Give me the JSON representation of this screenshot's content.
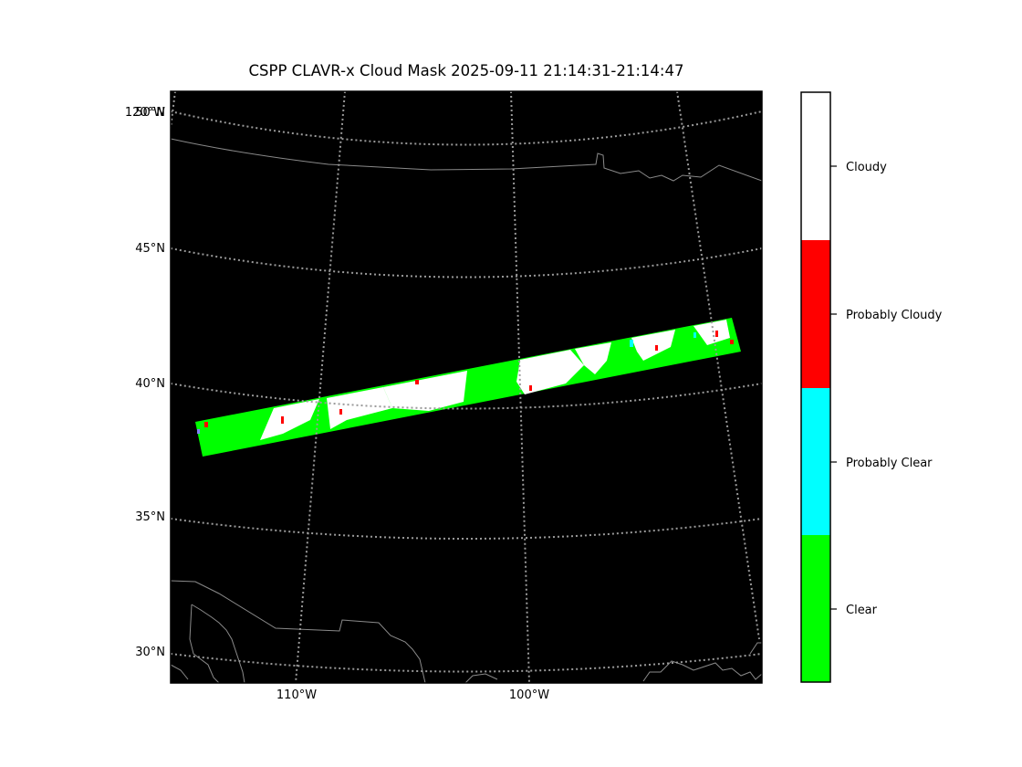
{
  "title": "CSPP CLAVR-x Cloud Mask 2025-09-11 21:14:31-21:14:47",
  "map": {
    "lat_labels": [
      "50°N",
      "45°N",
      "40°N",
      "35°N",
      "30°N"
    ],
    "lon_labels": [
      "120°W",
      "110°W",
      "100°W"
    ],
    "background_color": "#000000",
    "gridline_color": "#9a9a9a",
    "coastline_color": "#8a8a8a"
  },
  "colorbar": {
    "classes": [
      {
        "label": "Cloudy",
        "color": "#ffffff"
      },
      {
        "label": "Probably Cloudy",
        "color": "#ff0000"
      },
      {
        "label": "Probably Clear",
        "color": "#00ffff"
      },
      {
        "label": "Clear",
        "color": "#00ff00"
      }
    ]
  }
}
